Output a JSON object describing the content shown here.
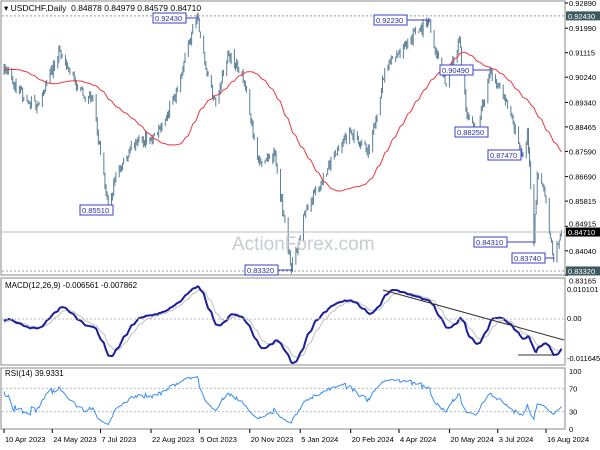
{
  "header": {
    "symbol": "USDCHF,Daily",
    "ohlc": "0.84878 0.84979 0.84579 0.84710"
  },
  "watermark": "ActionForex.com",
  "chart_data": [
    {
      "type": "candlestick",
      "title": "USDCHF,Daily 0.84878 0.84979 0.84579 0.84710",
      "y_ticks": [
        "0.92890",
        "0.91990",
        "0.91115",
        "0.90240",
        "0.89340",
        "0.88465",
        "0.87590",
        "0.86690",
        "0.85815",
        "0.84915",
        "0.84040",
        "0.83165"
      ],
      "ylim": [
        0.83165,
        0.9289
      ],
      "current_price": "0.84710",
      "price_tags": [
        "0.92430",
        "0.83320"
      ],
      "price_path": [
        [
          "2023-04-10",
          0.906
        ],
        [
          "2023-04-28",
          0.895
        ],
        [
          "2023-05-10",
          0.892
        ],
        [
          "2023-05-31",
          0.912
        ],
        [
          "2023-06-12",
          0.903
        ],
        [
          "2023-06-23",
          0.894
        ],
        [
          "2023-06-30",
          0.895
        ],
        [
          "2023-07-14",
          0.8551
        ],
        [
          "2023-07-20",
          0.866
        ],
        [
          "2023-08-02",
          0.876
        ],
        [
          "2023-08-14",
          0.88
        ],
        [
          "2023-08-28",
          0.882
        ],
        [
          "2023-09-12",
          0.895
        ],
        [
          "2023-10-03",
          0.9243
        ],
        [
          "2023-10-12",
          0.904
        ],
        [
          "2023-10-20",
          0.893
        ],
        [
          "2023-10-31",
          0.911
        ],
        [
          "2023-11-13",
          0.904
        ],
        [
          "2023-11-28",
          0.872
        ],
        [
          "2023-12-13",
          0.875
        ],
        [
          "2023-12-28",
          0.8332
        ],
        [
          "2024-01-10",
          0.855
        ],
        [
          "2024-01-24",
          0.865
        ],
        [
          "2024-02-07",
          0.875
        ],
        [
          "2024-02-20",
          0.883
        ],
        [
          "2024-03-08",
          0.876
        ],
        [
          "2024-03-22",
          0.905
        ],
        [
          "2024-04-12",
          0.915
        ],
        [
          "2024-05-01",
          0.9223
        ],
        [
          "2024-05-16",
          0.9
        ],
        [
          "2024-05-29",
          0.9158
        ],
        [
          "2024-06-05",
          0.888
        ],
        [
          "2024-06-14",
          0.8825
        ],
        [
          "2024-06-26",
          0.9049
        ],
        [
          "2024-07-08",
          0.896
        ],
        [
          "2024-07-26",
          0.8747
        ],
        [
          "2024-07-30",
          0.883
        ],
        [
          "2024-08-05",
          0.8431
        ],
        [
          "2024-08-08",
          0.868
        ],
        [
          "2024-08-14",
          0.863
        ],
        [
          "2024-08-23",
          0.8374
        ],
        [
          "2024-08-30",
          0.8471
        ]
      ],
      "annotations": [
        {
          "text": "0.92430",
          "date": "2023-10-03",
          "price": 0.9243
        },
        {
          "text": "0.92230",
          "date": "2024-05-01",
          "price": 0.9223
        },
        {
          "text": "0.90490",
          "date": "2024-06-26",
          "price": 0.9049
        },
        {
          "text": "0.88250",
          "date": "2024-06-14",
          "price": 0.8825
        },
        {
          "text": "0.87470",
          "date": "2024-07-26",
          "price": 0.8747
        },
        {
          "text": "0.85510",
          "date": "2023-07-14",
          "price": 0.8551
        },
        {
          "text": "0.84310",
          "date": "2024-08-05",
          "price": 0.8431
        },
        {
          "text": "0.83740",
          "date": "2024-08-23",
          "price": 0.8374
        },
        {
          "text": "0.83320",
          "date": "2023-12-28",
          "price": 0.8332
        }
      ],
      "colors": {
        "bars": "#5a7f97",
        "ma": "#e8383d",
        "label_border": "#3b3fc8",
        "label_text": "#2a2fa8"
      }
    },
    {
      "type": "line",
      "title": "MACD(12,26,9) -0.006561 -0.007862",
      "y_ticks": [
        "0.010101",
        "0.00",
        "-0.011645"
      ],
      "colors": {
        "macd": "#1a1e9c",
        "signal": "#c0c0c0"
      }
    },
    {
      "type": "line",
      "title": "RSI(14) 39.9331",
      "y_ticks": [
        "100",
        "70",
        "30",
        "0"
      ],
      "ylim": [
        0,
        100
      ],
      "colors": {
        "rsi": "#3a8ef0"
      }
    }
  ],
  "x_ticks": [
    [
      "10 Apr 2023",
      "2023-04-10"
    ],
    [
      "24 May 2023",
      "2023-05-24"
    ],
    [
      "7 Jul 2023",
      "2023-07-07"
    ],
    [
      "22 Aug 2023",
      "2023-08-22"
    ],
    [
      "5 Oct 2023",
      "2023-10-05"
    ],
    [
      "20 Nov 2023",
      "2023-11-20"
    ],
    [
      "5 Jan 2024",
      "2024-01-05"
    ],
    [
      "20 Feb 2024",
      "2024-02-20"
    ],
    [
      "4 Apr 2024",
      "2024-04-04"
    ],
    [
      "20 May 2024",
      "2024-05-20"
    ],
    [
      "3 Jul 2024",
      "2024-07-03"
    ],
    [
      "16 Aug 2024",
      "2024-08-16"
    ]
  ]
}
